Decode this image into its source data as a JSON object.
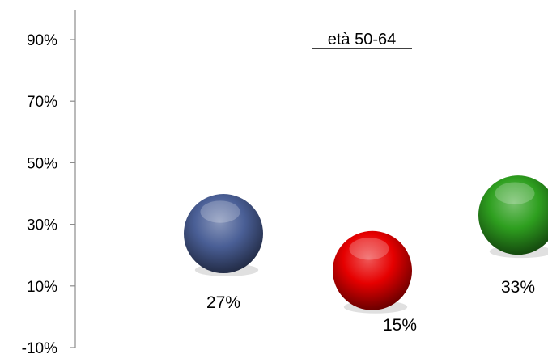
{
  "chart_data": {
    "type": "scatter",
    "title": "età 50-64",
    "xlabel": "",
    "ylabel": "",
    "ylim": [
      -10,
      90
    ],
    "yticks": [
      "-10%",
      "10%",
      "30%",
      "50%",
      "70%",
      "90%"
    ],
    "ytick_values": [
      -10,
      10,
      30,
      50,
      70,
      90
    ],
    "grid": false,
    "legend": "none",
    "points": [
      {
        "x": 1,
        "y": 27,
        "label": "27%",
        "color": "#4a5f96"
      },
      {
        "x": 2,
        "y": 15,
        "label": "15%",
        "color": "#e60000"
      },
      {
        "x": 3,
        "y": 33,
        "label": "33%",
        "color": "#2e9f1f"
      }
    ]
  }
}
